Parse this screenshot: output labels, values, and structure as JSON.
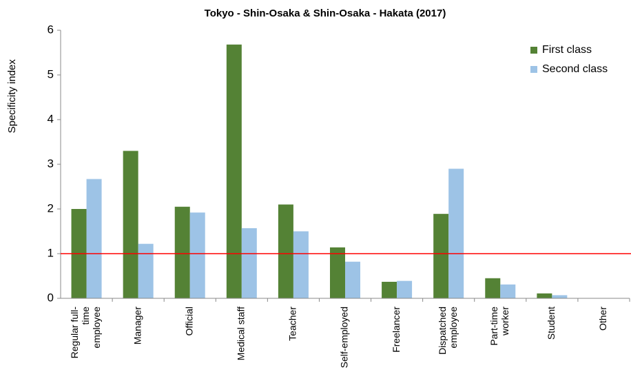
{
  "chart_data": {
    "type": "bar",
    "title": "Tokyo - Shin-Osaka & Shin-Osaka - Hakata (2017)",
    "y_label": "Specificity index",
    "categories": [
      [
        "Regular full-",
        "time",
        "employee"
      ],
      [
        "Manager"
      ],
      [
        "Official"
      ],
      [
        "Medical staff"
      ],
      [
        "Teacher"
      ],
      [
        "Self-employed"
      ],
      [
        "Freelancer"
      ],
      [
        "Dispatched",
        "employee"
      ],
      [
        "Part-time",
        "worker"
      ],
      [
        "Student"
      ],
      [
        "Other"
      ]
    ],
    "series": [
      {
        "name": "First class",
        "color": "#548235",
        "values": [
          2.0,
          3.3,
          2.05,
          5.68,
          2.1,
          1.14,
          0.37,
          1.89,
          0.45,
          0.11,
          0
        ]
      },
      {
        "name": "Second class",
        "color": "#9dc3e6",
        "values": [
          2.67,
          1.22,
          1.92,
          1.57,
          1.5,
          0.82,
          0.39,
          2.9,
          0.31,
          0.07,
          0
        ]
      }
    ],
    "ylim": [
      0,
      6
    ],
    "yticks": [
      0,
      1,
      2,
      3,
      4,
      5,
      6
    ],
    "grid": false,
    "reference_line": {
      "value": 1,
      "color": "#ff0000"
    },
    "legend": "top-right"
  }
}
